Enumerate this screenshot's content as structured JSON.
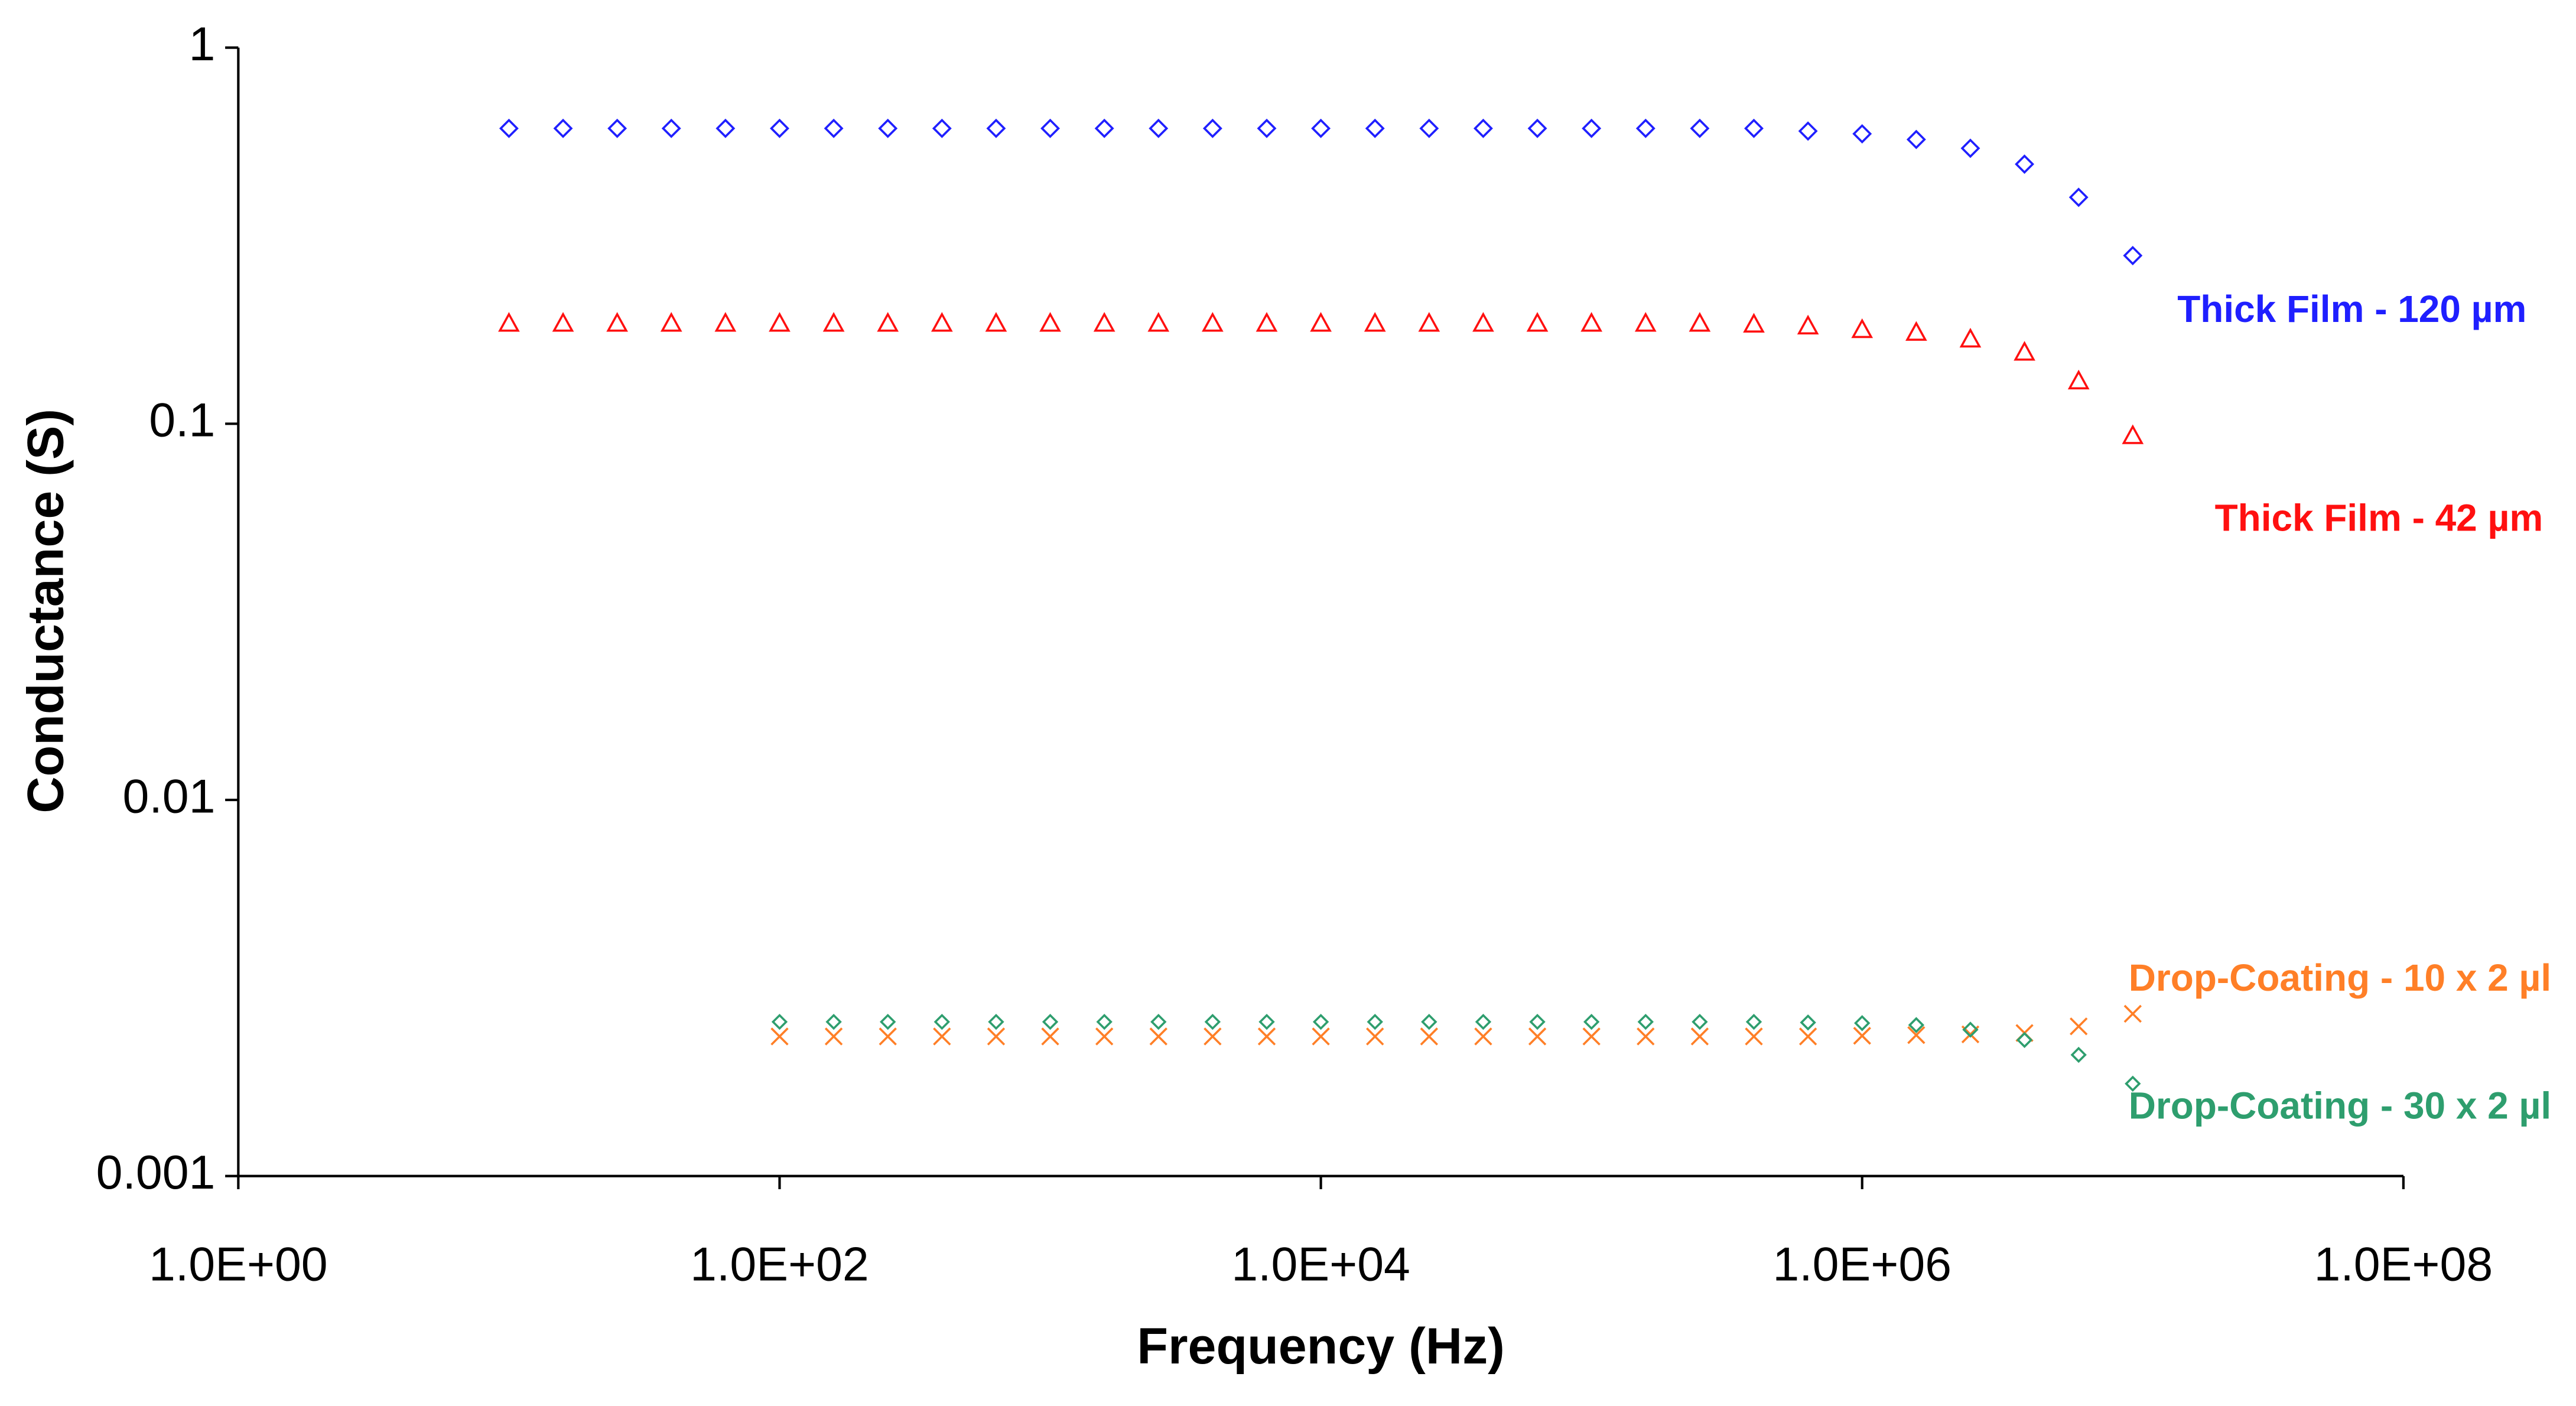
{
  "chart_data": {
    "type": "scatter",
    "x_label": "Frequency (Hz)",
    "y_label": "Conductance (S)",
    "xscale": "log",
    "yscale": "log",
    "xlim": [
      1,
      100000000
    ],
    "ylim": [
      0.001,
      1
    ],
    "xticks": [
      {
        "value": 1,
        "label": "1.0E+00"
      },
      {
        "value": 100,
        "label": "1.0E+02"
      },
      {
        "value": 10000,
        "label": "1.0E+04"
      },
      {
        "value": 1000000,
        "label": "1.0E+06"
      },
      {
        "value": 100000000,
        "label": "1.0E+08"
      }
    ],
    "yticks": [
      0.001,
      0.01,
      0.1,
      1
    ],
    "grid": false,
    "series": [
      {
        "name": "Thick Film - 120 µm",
        "color": "#1f1fff",
        "marker": "diamond",
        "x": [
          10,
          15.85,
          25.12,
          39.81,
          63.1,
          100,
          158.5,
          251.2,
          398.1,
          631,
          1000,
          1585,
          2512,
          3981,
          6310,
          10000,
          15850,
          25120,
          39810,
          63100,
          100000,
          158500,
          251200,
          398100,
          631000,
          1000000,
          1585000,
          2512000,
          3981000,
          6310000,
          10000000
        ],
        "values": [
          0.61,
          0.61,
          0.61,
          0.61,
          0.61,
          0.61,
          0.61,
          0.61,
          0.61,
          0.61,
          0.61,
          0.61,
          0.61,
          0.61,
          0.61,
          0.61,
          0.61,
          0.61,
          0.61,
          0.61,
          0.61,
          0.61,
          0.61,
          0.61,
          0.6,
          0.59,
          0.57,
          0.54,
          0.49,
          0.4,
          0.28
        ]
      },
      {
        "name": "Thick Film - 42 µm",
        "color": "#ff1010",
        "marker": "triangle",
        "x": [
          10,
          15.85,
          25.12,
          39.81,
          63.1,
          100,
          158.5,
          251.2,
          398.1,
          631,
          1000,
          1585,
          2512,
          3981,
          6310,
          10000,
          15850,
          25120,
          39810,
          63100,
          100000,
          158500,
          251200,
          398100,
          631000,
          1000000,
          1585000,
          2512000,
          3981000,
          6310000,
          10000000
        ],
        "values": [
          0.185,
          0.185,
          0.185,
          0.185,
          0.185,
          0.185,
          0.185,
          0.185,
          0.185,
          0.185,
          0.185,
          0.185,
          0.185,
          0.185,
          0.185,
          0.185,
          0.185,
          0.185,
          0.185,
          0.185,
          0.185,
          0.185,
          0.185,
          0.184,
          0.182,
          0.178,
          0.175,
          0.168,
          0.155,
          0.13,
          0.093
        ]
      },
      {
        "name": "Drop-Coating - 10 x 2 µl",
        "color": "#ff7f27",
        "marker": "x",
        "x": [
          100,
          158.5,
          251.2,
          398.1,
          631,
          1000,
          1585,
          2512,
          3981,
          6310,
          10000,
          15850,
          25120,
          39810,
          63100,
          100000,
          158500,
          251200,
          398100,
          631000,
          1000000,
          1585000,
          2512000,
          3981000,
          6310000,
          10000000
        ],
        "values": [
          0.00235,
          0.00235,
          0.00235,
          0.00235,
          0.00235,
          0.00235,
          0.00235,
          0.00235,
          0.00235,
          0.00235,
          0.00235,
          0.00235,
          0.00235,
          0.00235,
          0.00235,
          0.00235,
          0.00235,
          0.00235,
          0.00235,
          0.00235,
          0.00236,
          0.00237,
          0.00238,
          0.0024,
          0.0025,
          0.0027
        ]
      },
      {
        "name": "Drop-Coating - 30 x 2 µl",
        "color": "#2e9e6e",
        "marker": "small-diamond",
        "x": [
          100,
          158.5,
          251.2,
          398.1,
          631,
          1000,
          1585,
          2512,
          3981,
          6310,
          10000,
          15850,
          25120,
          39810,
          63100,
          100000,
          158500,
          251200,
          398100,
          631000,
          1000000,
          1585000,
          2512000,
          3981000,
          6310000,
          10000000
        ],
        "values": [
          0.00257,
          0.00257,
          0.00257,
          0.00257,
          0.00257,
          0.00257,
          0.00257,
          0.00257,
          0.00257,
          0.00257,
          0.00257,
          0.00257,
          0.00257,
          0.00257,
          0.00257,
          0.00257,
          0.00257,
          0.00257,
          0.00257,
          0.00256,
          0.00255,
          0.00252,
          0.00245,
          0.0023,
          0.0021,
          0.00176
        ]
      }
    ]
  }
}
